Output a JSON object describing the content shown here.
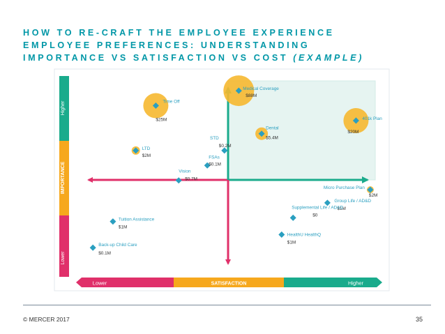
{
  "slide": {
    "title_line1": "HOW TO RE-CRAFT THE EMPLOYEE EXPERIENCE",
    "title_line2": "EMPLOYEE PREFERENCES: UNDERSTANDING",
    "title_line3_main": "IMPORTANCE VS SATISFACTION VS COST",
    "title_line3_example": "(EXAMPLE)",
    "footer_left": "© MERCER 2017",
    "page_number": "35"
  },
  "colors": {
    "title": "#0097a7",
    "pink": "#e0306a",
    "gold": "#f6a81d",
    "teal": "#1aab8c",
    "marker": "#2a9fc0",
    "bubble": "#f6b830",
    "quadrant": "#e6f4f1"
  },
  "chart_data": {
    "type": "scatter",
    "xlabel": "SATISFACTION",
    "ylabel": "IMPORTANCE",
    "x_low": "Lower",
    "x_high": "Higher",
    "y_low": "Lower",
    "y_high": "Higher",
    "xlim": [
      0,
      100
    ],
    "ylim": [
      0,
      100
    ],
    "points": [
      {
        "name": "Time Off",
        "cost": "$25M",
        "x": 24,
        "y": 86,
        "bubble": 18
      },
      {
        "name": "Medical Coverage",
        "cost": "$88M",
        "x": 53,
        "y": 94,
        "bubble": 22
      },
      {
        "name": "Dental",
        "cost": "$5.4M",
        "x": 61,
        "y": 71,
        "bubble": 9
      },
      {
        "name": "401k Plan",
        "cost": "$20M",
        "x": 94,
        "y": 78,
        "bubble": 18
      },
      {
        "name": "LTD",
        "cost": "$2M",
        "x": 17,
        "y": 62,
        "bubble": 6
      },
      {
        "name": "STD",
        "cost": "$0.2M",
        "x": 48,
        "y": 62
      },
      {
        "name": "FSAs",
        "cost": "$0.1M",
        "x": 42,
        "y": 54
      },
      {
        "name": "Vision",
        "cost": "$0.7M",
        "x": 32,
        "y": 46
      },
      {
        "name": "Micro Purchase Plan",
        "cost": "$2M",
        "x": 99,
        "y": 41,
        "bubble": 5
      },
      {
        "name": "Group Life / AD&D",
        "cost": "$1M",
        "x": 84,
        "y": 34
      },
      {
        "name": "Supplemental Life / AD&D",
        "cost": "$0",
        "x": 72,
        "y": 26
      },
      {
        "name": "Tuition Assistance",
        "cost": "$1M",
        "x": 9,
        "y": 24
      },
      {
        "name": "HealthU HealthQ",
        "cost": "$1M",
        "x": 68,
        "y": 17
      },
      {
        "name": "Back-up Child Care",
        "cost": "$0.1M",
        "x": 2,
        "y": 10
      }
    ]
  }
}
